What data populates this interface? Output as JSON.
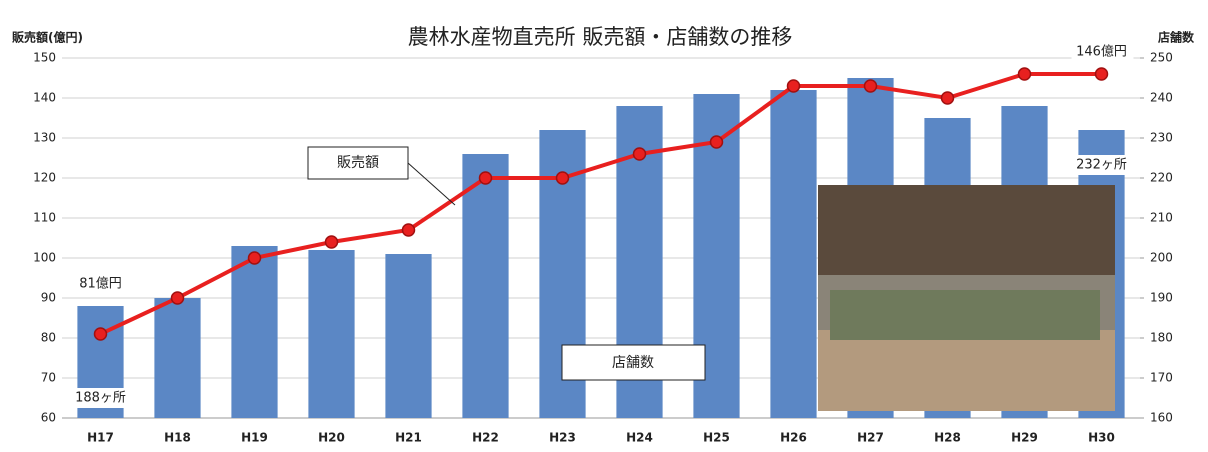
{
  "chart_data": {
    "type": "bar_line",
    "title": "農林水産物直売所 販売額・店舗数の推移",
    "y_axis_label": "販売額(億円)",
    "y2_axis_label": "店舗数",
    "categories": [
      "H17",
      "H18",
      "H19",
      "H20",
      "H21",
      "H22",
      "H23",
      "H24",
      "H25",
      "H26",
      "H27",
      "H28",
      "H29",
      "H30"
    ],
    "series": [
      {
        "name": "店舗数",
        "type": "bar",
        "axis": "y2",
        "color": "#5b87c5",
        "values": [
          188,
          190,
          203,
          202,
          201,
          226,
          232,
          238,
          241,
          242,
          245,
          235,
          238,
          232
        ],
        "value_labels": [
          "188ヶ所",
          null,
          null,
          null,
          null,
          null,
          null,
          null,
          null,
          null,
          null,
          null,
          null,
          "232ヶ所"
        ]
      },
      {
        "name": "販売額",
        "type": "line",
        "axis": "y",
        "color": "#e8201f",
        "values": [
          81,
          90,
          100,
          104,
          107,
          120,
          120,
          126,
          129,
          143,
          143,
          140,
          146,
          146
        ],
        "value_labels": [
          "81億円",
          null,
          null,
          null,
          null,
          null,
          null,
          null,
          null,
          null,
          null,
          null,
          null,
          "146億円"
        ]
      }
    ],
    "ylim": [
      60,
      150
    ],
    "yticks": [
      60,
      70,
      80,
      90,
      100,
      110,
      120,
      130,
      140,
      150
    ],
    "y2lim": [
      160,
      250
    ],
    "y2ticks": [
      160,
      170,
      180,
      190,
      200,
      210,
      220,
      230,
      240,
      250
    ],
    "grid": true
  }
}
